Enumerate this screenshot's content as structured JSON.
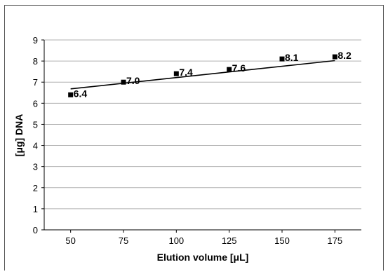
{
  "chart_data": {
    "type": "scatter",
    "xlabel": "Elution volume [μL]",
    "ylabel": "[μg] DNA",
    "xlim": [
      37.5,
      187.5
    ],
    "ylim": [
      0,
      9
    ],
    "x_ticks": [
      "50",
      "75",
      "100",
      "125",
      "150",
      "175"
    ],
    "y_ticks": [
      "0",
      "1",
      "2",
      "3",
      "4",
      "5",
      "6",
      "7",
      "8",
      "9"
    ],
    "grid": "horizontal",
    "legend": "none",
    "series": [
      {
        "points": [
          {
            "x": 50,
            "y": 6.4,
            "label": "6.4"
          },
          {
            "x": 75,
            "y": 7.0,
            "label": "7.0"
          },
          {
            "x": 100,
            "y": 7.4,
            "label": "7.4"
          },
          {
            "x": 125,
            "y": 7.6,
            "label": "7.6"
          },
          {
            "x": 150,
            "y": 8.1,
            "label": "8.1"
          },
          {
            "x": 175,
            "y": 8.2,
            "label": "8.2"
          }
        ]
      }
    ],
    "trendline": {
      "type": "linear",
      "x": [
        50,
        175
      ],
      "y": [
        6.68,
        8.02
      ]
    },
    "colors": {
      "marker": "#000000",
      "line": "#000000",
      "grid": "#b0b0b0",
      "border": "#555555"
    }
  }
}
